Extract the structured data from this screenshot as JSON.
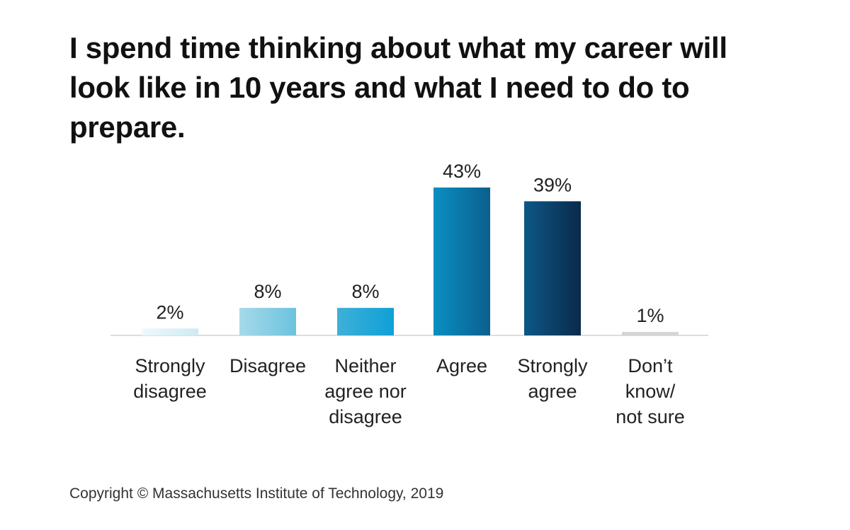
{
  "chart_data": {
    "type": "bar",
    "title": "I spend time thinking about what my career will look like in 10 years and what I need to do to prepare.",
    "categories": [
      [
        "Strongly",
        "disagree"
      ],
      [
        "Disagree"
      ],
      [
        "Neither",
        "agree nor",
        "disagree"
      ],
      [
        "Agree"
      ],
      [
        "Strongly",
        "agree"
      ],
      [
        "Don’t",
        "know/",
        "not sure"
      ]
    ],
    "values": [
      2,
      8,
      8,
      43,
      39,
      1
    ],
    "value_labels": [
      "2%",
      "8%",
      "8%",
      "43%",
      "39%",
      "1%"
    ],
    "ylim": [
      0,
      45
    ],
    "xlabel": "",
    "ylabel": "",
    "grid": false,
    "legend": "none",
    "colors": [
      [
        "#f0f9fc",
        "#cdeaf3"
      ],
      [
        "#a6d9ea",
        "#6bc3de"
      ],
      [
        "#3fb0d8",
        "#0fa0d6"
      ],
      [
        "#0a8fc2",
        "#0b5f8f"
      ],
      [
        "#0d5787",
        "#0a2a4a"
      ],
      [
        "#d4d4d4",
        "#d4d4d4"
      ]
    ],
    "axis_color": "#dddddd"
  },
  "footer": {
    "copyright": "Copyright © Massachusetts Institute of Technology, 2019"
  }
}
